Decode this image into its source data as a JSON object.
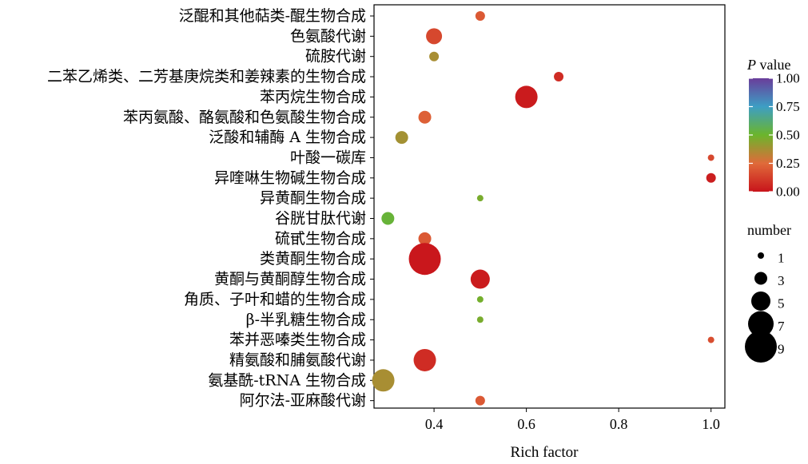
{
  "chart_data": {
    "type": "scatter",
    "title": "",
    "xlabel": "Rich factor",
    "ylabel": "",
    "xlim": [
      0.27,
      1.03
    ],
    "xticks": [
      0.4,
      0.6,
      0.8,
      1.0
    ],
    "xtick_labels": [
      "0.4",
      "0.6",
      "0.8",
      "1.0"
    ],
    "grid": false,
    "categories": [
      "泛醌和其他萜类-醌生物合成",
      "色氨酸代谢",
      "硫胺代谢",
      "二苯乙烯类、二芳基庚烷类和姜辣素的生物合成",
      "苯丙烷生物合成",
      "苯丙氨酸、酪氨酸和色氨酸生物合成",
      "泛酸和辅酶 A 生物合成",
      "叶酸一碳库",
      "异喹啉生物碱生物合成",
      "异黄酮生物合成",
      "谷胱甘肽代谢",
      "硫甙生物合成",
      "类黄酮生物合成",
      "黄酮与黄酮醇生物合成",
      "角质、子叶和蜡的生物合成",
      "β-半乳糖生物合成",
      "苯并恶嗪类生物合成",
      "精氨酸和脯氨酸代谢",
      "氨基酰-tRNA 生物合成",
      "阿尔法-亚麻酸代谢"
    ],
    "points": [
      {
        "category": "泛醌和其他萜类-醌生物合成",
        "rich_factor": 0.5,
        "number": 2,
        "p_value": 0.2
      },
      {
        "category": "色氨酸代谢",
        "rich_factor": 0.4,
        "number": 4,
        "p_value": 0.15
      },
      {
        "category": "硫胺代谢",
        "rich_factor": 0.4,
        "number": 2,
        "p_value": 0.37
      },
      {
        "category": "二苯乙烯类、二芳基庚烷类和姜辣素的生物合成",
        "rich_factor": 0.67,
        "number": 2,
        "p_value": 0.07
      },
      {
        "category": "苯丙烷生物合成",
        "rich_factor": 0.6,
        "number": 6,
        "p_value": 0.02
      },
      {
        "category": "苯丙氨酸、酪氨酸和色氨酸生物合成",
        "rich_factor": 0.38,
        "number": 3,
        "p_value": 0.22
      },
      {
        "category": "泛酸和辅酶 A 生物合成",
        "rich_factor": 0.33,
        "number": 3,
        "p_value": 0.38
      },
      {
        "category": "叶酸一碳库",
        "rich_factor": 1.0,
        "number": 1,
        "p_value": 0.15
      },
      {
        "category": "异喹啉生物碱生物合成",
        "rich_factor": 1.0,
        "number": 2,
        "p_value": 0.03
      },
      {
        "category": "异黄酮生物合成",
        "rich_factor": 0.5,
        "number": 1,
        "p_value": 0.47
      },
      {
        "category": "谷胱甘肽代谢",
        "rich_factor": 0.3,
        "number": 3,
        "p_value": 0.52
      },
      {
        "category": "硫甙生物合成",
        "rich_factor": 0.38,
        "number": 3,
        "p_value": 0.2
      },
      {
        "category": "类黄酮生物合成",
        "rich_factor": 0.38,
        "number": 9,
        "p_value": 0.01
      },
      {
        "category": "黄酮与黄酮醇生物合成",
        "rich_factor": 0.5,
        "number": 5,
        "p_value": 0.02
      },
      {
        "category": "角质、子叶和蜡的生物合成",
        "rich_factor": 0.5,
        "number": 1,
        "p_value": 0.48
      },
      {
        "category": "β-半乳糖生物合成",
        "rich_factor": 0.5,
        "number": 1,
        "p_value": 0.47
      },
      {
        "category": "苯并恶嗪类生物合成",
        "rich_factor": 1.0,
        "number": 1,
        "p_value": 0.17
      },
      {
        "category": "精氨酸和脯氨酸代谢",
        "rich_factor": 0.38,
        "number": 6,
        "p_value": 0.07
      },
      {
        "category": "氨基酰-tRNA 生物合成",
        "rich_factor": 0.29,
        "number": 6,
        "p_value": 0.37
      },
      {
        "category": "阿尔法-亚麻酸代谢",
        "rich_factor": 0.5,
        "number": 2,
        "p_value": 0.2
      }
    ],
    "color_legend": {
      "title_italic": "P",
      "title_rest": " value",
      "ticks": [
        1.0,
        0.75,
        0.5,
        0.25,
        0.0
      ],
      "tick_labels": [
        "1.00",
        "0.75",
        "0.50",
        "0.25",
        "0.00"
      ],
      "gradient_stops": [
        {
          "value": 0.0,
          "color": "#c8141b"
        },
        {
          "value": 0.25,
          "color": "#e06a3a"
        },
        {
          "value": 0.5,
          "color": "#6bb52c"
        },
        {
          "value": 0.75,
          "color": "#3d9ec4"
        },
        {
          "value": 1.0,
          "color": "#6a3d9a"
        }
      ]
    },
    "size_legend": {
      "title": "number",
      "values": [
        1,
        3,
        5,
        7,
        9
      ],
      "labels": [
        "1",
        "3",
        "5",
        "7",
        "9"
      ],
      "color": "#000000"
    }
  }
}
